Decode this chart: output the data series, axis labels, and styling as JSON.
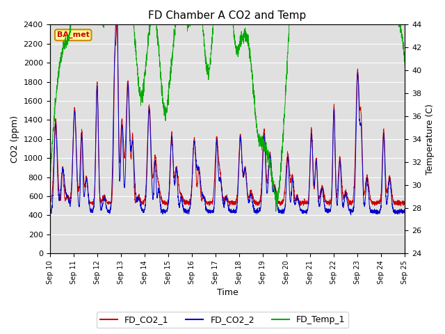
{
  "title": "FD Chamber A CO2 and Temp",
  "xlabel": "Time",
  "ylabel_left": "CO2 (ppm)",
  "ylabel_right": "Temperature (C)",
  "ylim_left": [
    0,
    2400
  ],
  "ylim_right": [
    24,
    44
  ],
  "yticks_left": [
    0,
    200,
    400,
    600,
    800,
    1000,
    1200,
    1400,
    1600,
    1800,
    2000,
    2200,
    2400
  ],
  "yticks_right": [
    24,
    26,
    28,
    30,
    32,
    34,
    36,
    38,
    40,
    42,
    44
  ],
  "xtick_labels": [
    "Sep 10",
    "Sep 11",
    "Sep 12",
    "Sep 13",
    "Sep 14",
    "Sep 15",
    "Sep 16",
    "Sep 17",
    "Sep 18",
    "Sep 19",
    "Sep 20",
    "Sep 21",
    "Sep 22",
    "Sep 23",
    "Sep 24",
    "Sep 25"
  ],
  "color_co2_1": "#cc0000",
  "color_co2_2": "#0000cc",
  "color_temp": "#00aa00",
  "legend_labels": [
    "FD_CO2_1",
    "FD_CO2_2",
    "FD_Temp_1"
  ],
  "annotation_label": "BA_met",
  "annotation_color": "#cc0000",
  "annotation_bg": "#ffff99",
  "annotation_border": "#cc8800",
  "background_color": "#e0e0e0",
  "title_fontsize": 11,
  "label_fontsize": 9,
  "tick_fontsize": 8
}
